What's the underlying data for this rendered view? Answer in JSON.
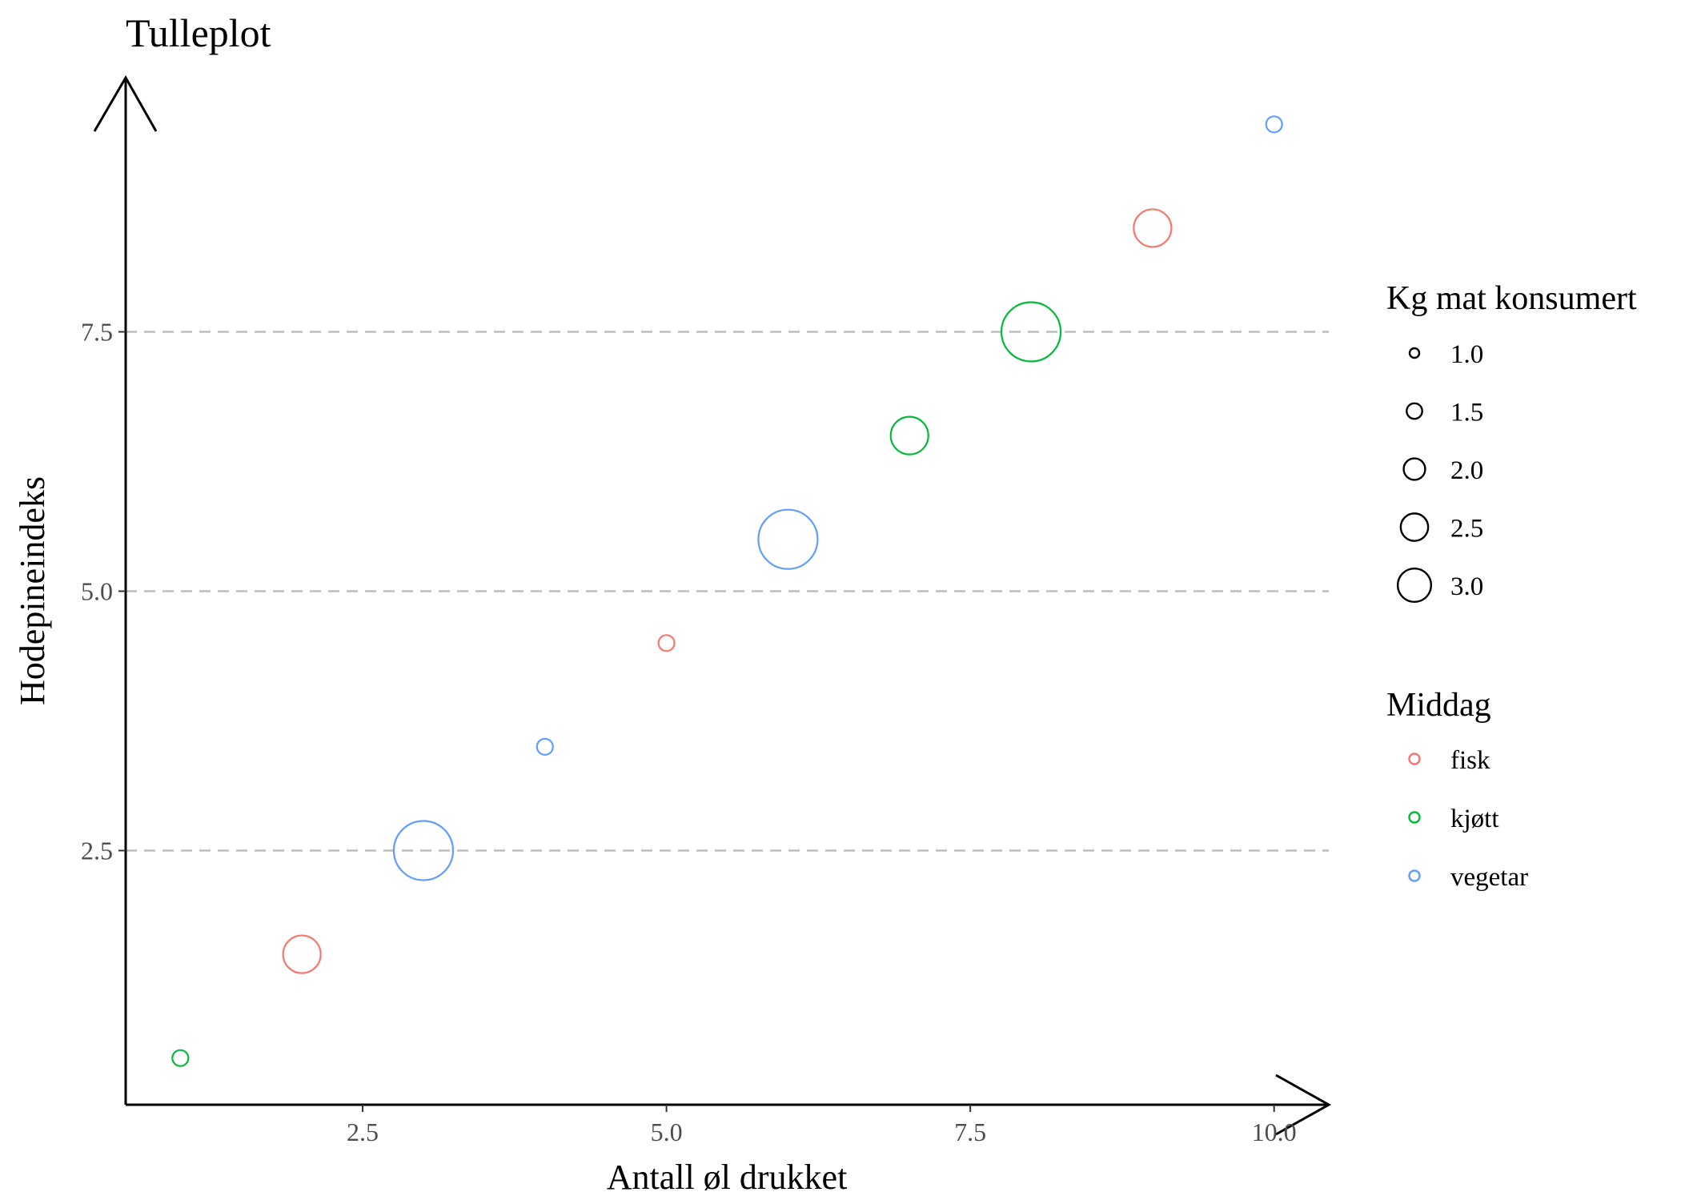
{
  "chart_data": {
    "type": "scatter",
    "title": "Tulleplot",
    "xlabel": "Antall øl drukket",
    "ylabel": "Hodepineindeks",
    "xlim": [
      0.55,
      10.45
    ],
    "ylim": [
      0.05,
      9.95
    ],
    "x_ticks": [
      2.5,
      5.0,
      7.5,
      10.0
    ],
    "x_tick_labels": [
      "2.5",
      "5.0",
      "7.5",
      "10.0"
    ],
    "y_ticks": [
      2.5,
      5.0,
      7.5
    ],
    "y_tick_labels": [
      "2.5",
      "5.0",
      "7.5"
    ],
    "grid": "horizontal-major-dashed",
    "colors": {
      "fisk": "#F8766D",
      "kjøtt": "#00BA38",
      "vegetar": "#619CFF"
    },
    "points": [
      {
        "x": 1,
        "y": 0.5,
        "size": 1.0,
        "group": "kjøtt"
      },
      {
        "x": 2,
        "y": 1.5,
        "size": 2.0,
        "group": "fisk"
      },
      {
        "x": 3,
        "y": 2.5,
        "size": 3.0,
        "group": "vegetar"
      },
      {
        "x": 4,
        "y": 3.5,
        "size": 1.0,
        "group": "vegetar"
      },
      {
        "x": 5,
        "y": 4.5,
        "size": 1.0,
        "group": "fisk"
      },
      {
        "x": 6,
        "y": 5.5,
        "size": 3.0,
        "group": "vegetar"
      },
      {
        "x": 7,
        "y": 6.5,
        "size": 2.0,
        "group": "kjøtt"
      },
      {
        "x": 8,
        "y": 7.5,
        "size": 3.0,
        "group": "kjøtt"
      },
      {
        "x": 9,
        "y": 8.5,
        "size": 2.0,
        "group": "fisk"
      },
      {
        "x": 10,
        "y": 9.5,
        "size": 1.0,
        "group": "vegetar"
      }
    ],
    "legend_size": {
      "title": "Kg mat konsumert",
      "items": [
        {
          "value": 1.0,
          "label": "1.0"
        },
        {
          "value": 1.5,
          "label": "1.5"
        },
        {
          "value": 2.0,
          "label": "2.0"
        },
        {
          "value": 2.5,
          "label": "2.5"
        },
        {
          "value": 3.0,
          "label": "3.0"
        }
      ]
    },
    "legend_color": {
      "title": "Middag",
      "items": [
        {
          "key": "fisk",
          "label": "fisk"
        },
        {
          "key": "kjøtt",
          "label": "kjøtt"
        },
        {
          "key": "vegetar",
          "label": "vegetar"
        }
      ]
    },
    "legend_position": "right"
  }
}
